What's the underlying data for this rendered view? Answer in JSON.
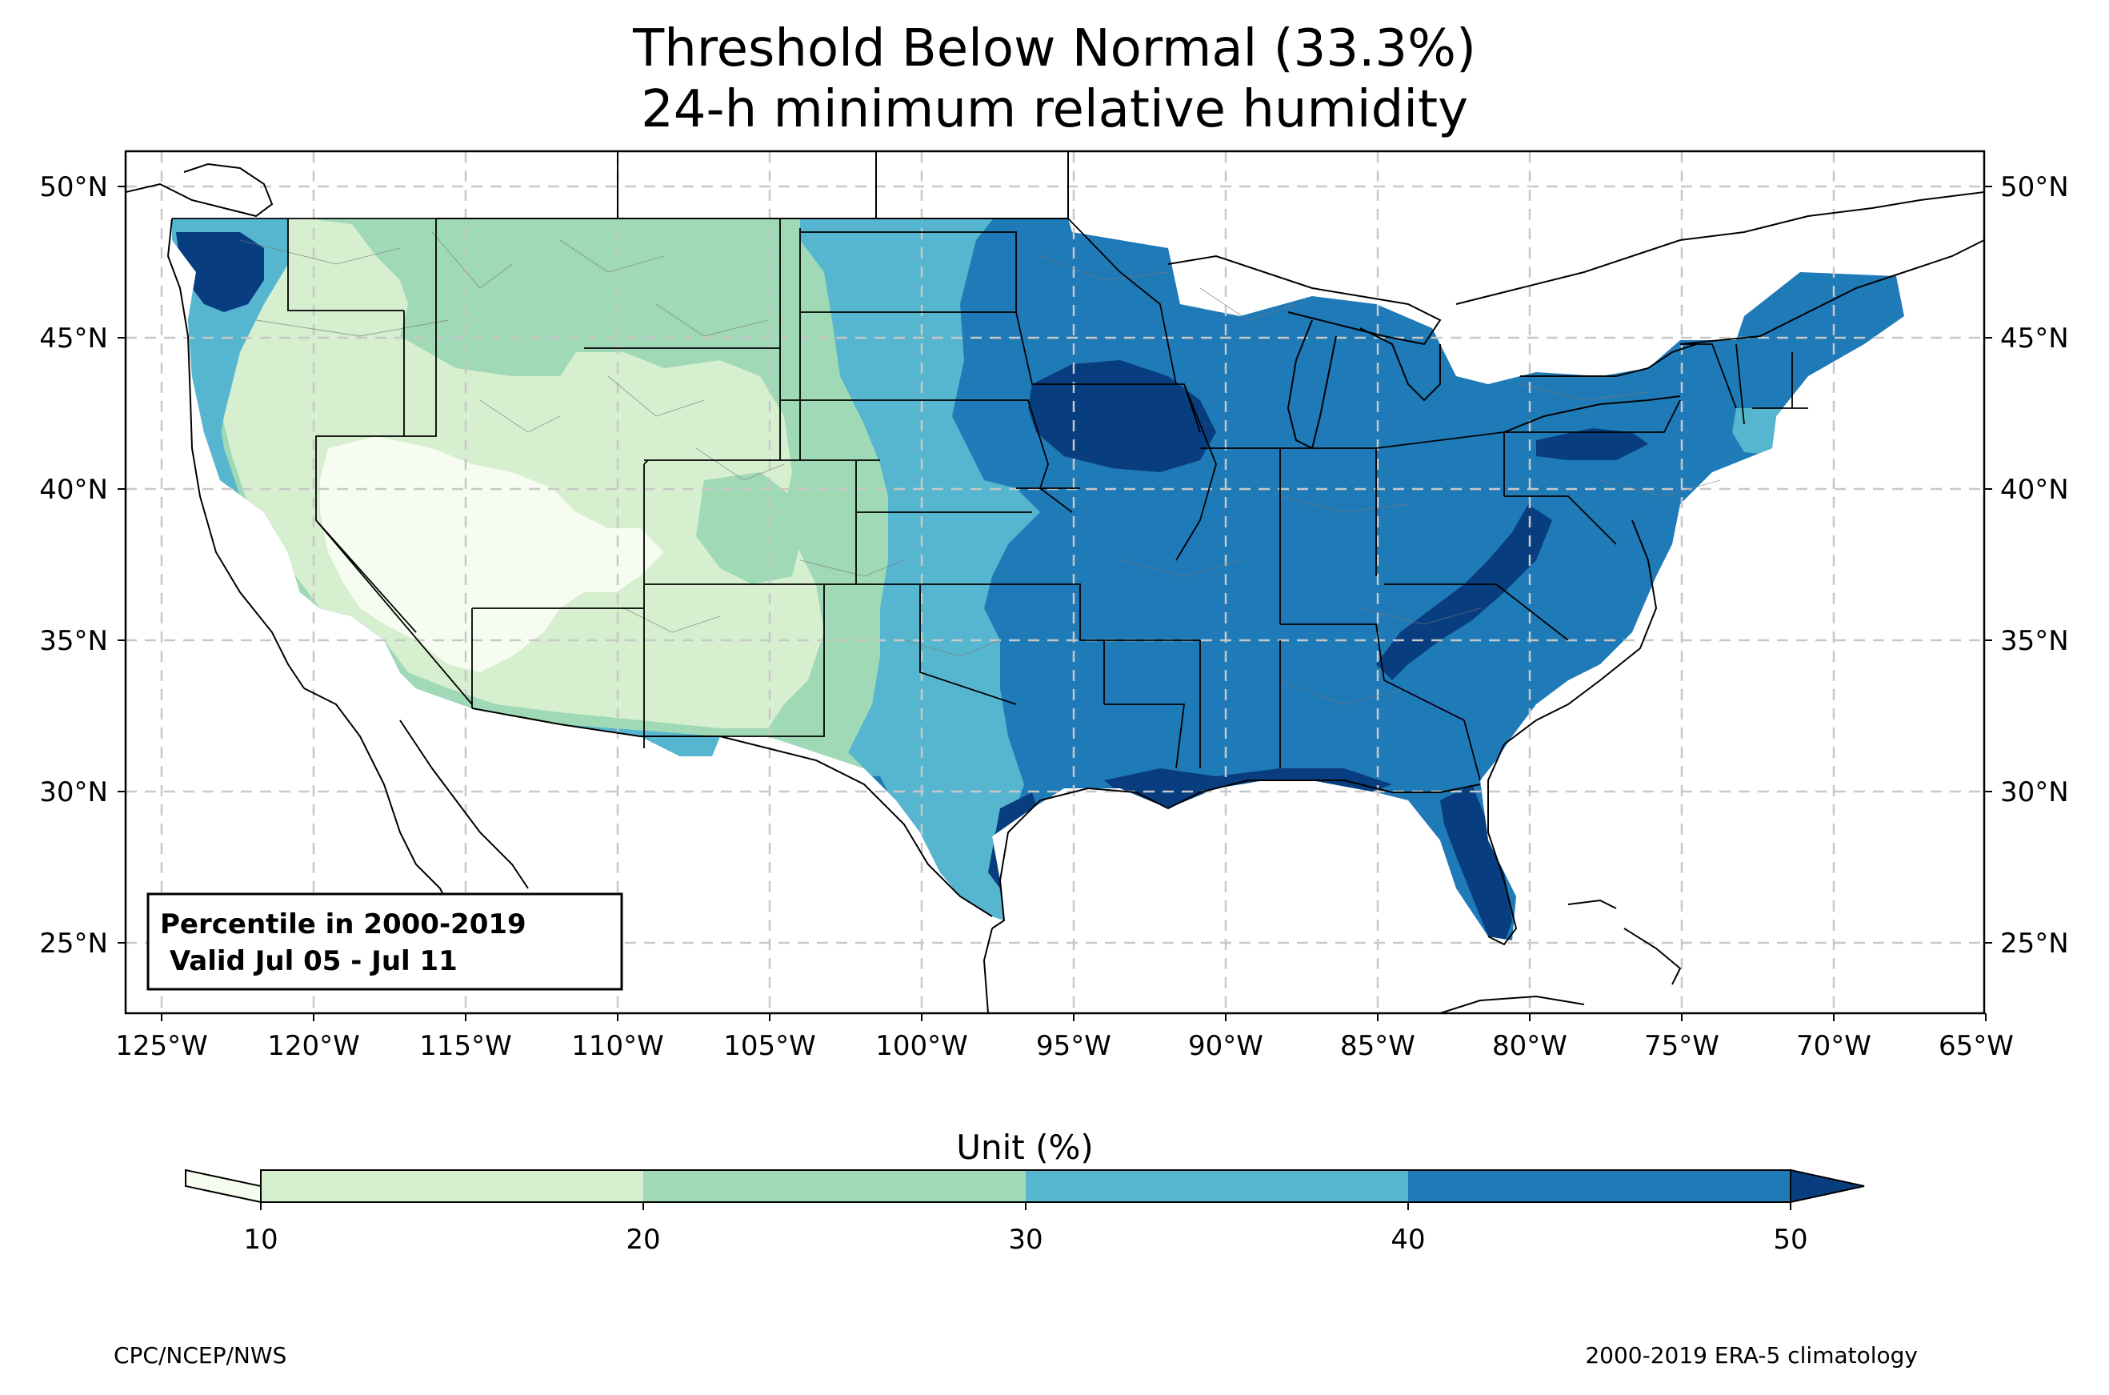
{
  "title": {
    "line1": "Threshold Below Normal (33.3%)",
    "line2": "24-h minimum relative humidity"
  },
  "map": {
    "lon_ticks": [
      "125°W",
      "120°W",
      "115°W",
      "110°W",
      "105°W",
      "100°W",
      "95°W",
      "90°W",
      "85°W",
      "80°W",
      "75°W",
      "70°W",
      "65°W"
    ],
    "lat_ticks": [
      "50°N",
      "45°N",
      "40°N",
      "35°N",
      "30°N",
      "25°N"
    ],
    "lon_values": [
      -125,
      -120,
      -115,
      -110,
      -105,
      -100,
      -95,
      -90,
      -85,
      -80,
      -75,
      -70,
      -65
    ],
    "lat_values": [
      50,
      45,
      40,
      35,
      30,
      25
    ],
    "lon_range": [
      -126.3,
      -64.8
    ],
    "lat_range": [
      22.8,
      51.2
    ],
    "grid": true
  },
  "info_box": {
    "line1": "Percentile in 2000-2019",
    "line2": " Valid Jul 05 - Jul 11"
  },
  "colorbar": {
    "unit_label": "Unit (%)",
    "tick_labels": [
      "10",
      "20",
      "30",
      "40",
      "50"
    ],
    "levels": [
      10,
      20,
      30,
      40,
      50
    ],
    "colors": {
      "below": "#f7fcf0",
      "b10_20": "#d5efcf",
      "b20_30": "#9fd9b5",
      "b30_40": "#57b6cf",
      "b40_50": "#1f7ab8",
      "above": "#083e80"
    },
    "extend": "both"
  },
  "footer": {
    "left": "CPC/NCEP/NWS",
    "right": "2000-2019 ERA-5 climatology"
  }
}
